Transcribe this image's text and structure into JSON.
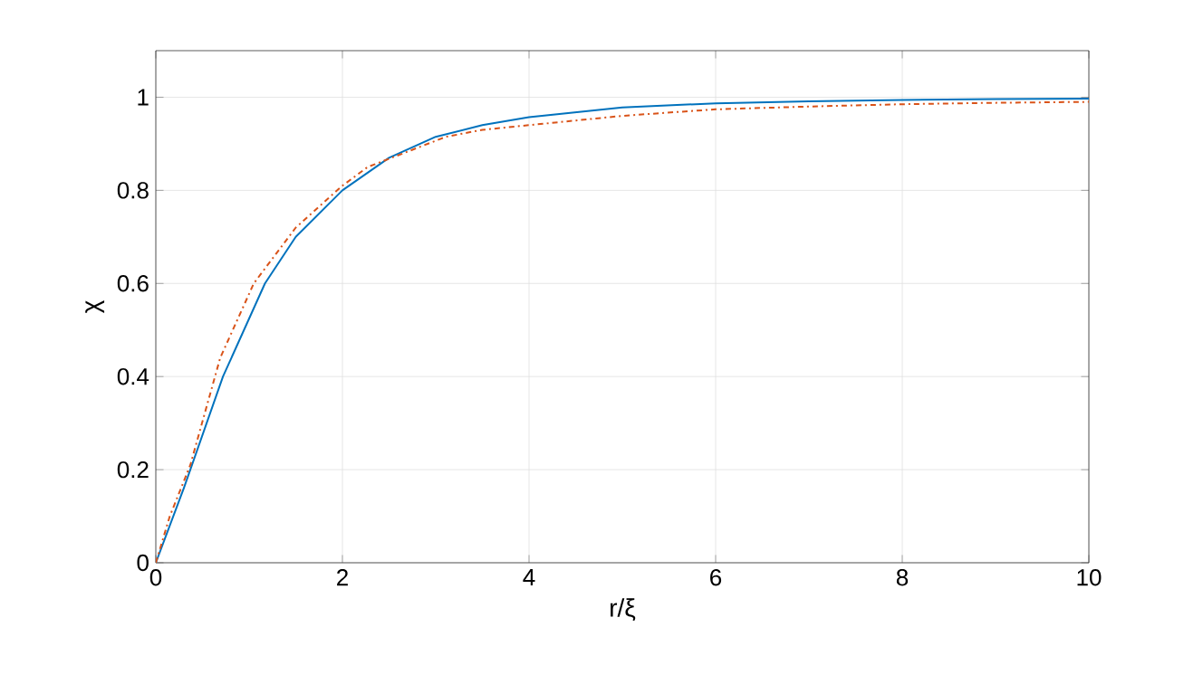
{
  "chart_data": {
    "type": "line",
    "xlabel": "r/ξ",
    "ylabel": "χ",
    "xlim": [
      0,
      10
    ],
    "ylim": [
      0,
      1.1
    ],
    "xticks": [
      0,
      2,
      4,
      6,
      8,
      10
    ],
    "yticks": [
      0,
      0.2,
      0.4,
      0.6,
      0.8,
      1
    ],
    "grid": true,
    "series": [
      {
        "color": "#0072bd",
        "line_style": "solid",
        "x": [
          0,
          0.3,
          0.72,
          1.17,
          1.5,
          2,
          2.5,
          3,
          3.5,
          4,
          5,
          6,
          7,
          8,
          9,
          10
        ],
        "values": [
          0,
          0.16,
          0.4,
          0.6,
          0.7,
          0.8,
          0.87,
          0.915,
          0.94,
          0.957,
          0.978,
          0.987,
          0.991,
          0.994,
          0.996,
          0.997
        ]
      },
      {
        "color": "#d95319",
        "line_style": "dashdot",
        "x": [
          0,
          0.15,
          0.37,
          0.69,
          1.05,
          1.5,
          2,
          2.27,
          3.11,
          3.5,
          4,
          5,
          6,
          7,
          8,
          9,
          10
        ],
        "values": [
          0,
          0.1,
          0.21,
          0.44,
          0.6,
          0.72,
          0.81,
          0.85,
          0.915,
          0.93,
          0.94,
          0.96,
          0.974,
          0.98,
          0.985,
          0.988,
          0.99
        ]
      }
    ]
  }
}
